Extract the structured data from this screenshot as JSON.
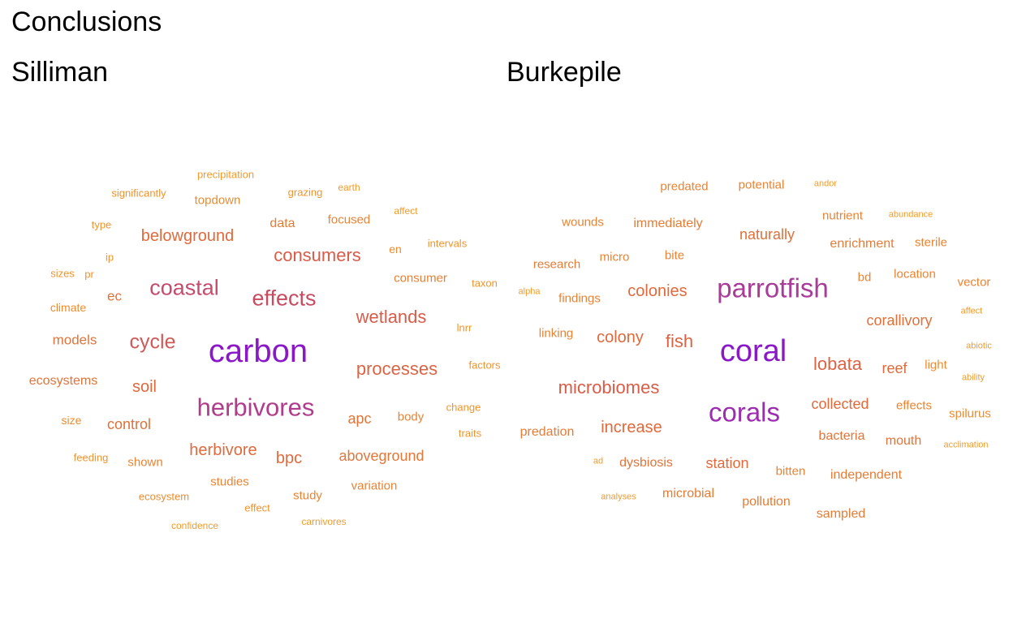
{
  "title": "Conclusions",
  "panels": [
    {
      "name": "Silliman",
      "words": [
        {
          "t": "carbon",
          "c": "#8a18c8"
        },
        {
          "t": "herbivores",
          "c": "#b03c8c"
        },
        {
          "t": "coastal",
          "c": "#c44c6c"
        },
        {
          "t": "effects",
          "c": "#c84c60"
        },
        {
          "t": "cycle",
          "c": "#d05a58"
        },
        {
          "t": "consumers",
          "c": "#d85c48"
        },
        {
          "t": "wetlands",
          "c": "#d85c48"
        },
        {
          "t": "processes",
          "c": "#dc6444"
        },
        {
          "t": "belowground",
          "c": "#e06a3c"
        },
        {
          "t": "herbivore",
          "c": "#e06a3c"
        },
        {
          "t": "soil",
          "c": "#e06a3c"
        },
        {
          "t": "bpc",
          "c": "#e06a3c"
        },
        {
          "t": "control",
          "c": "#e0703a"
        },
        {
          "t": "models",
          "c": "#e0743a"
        },
        {
          "t": "ecosystems",
          "c": "#e0743a"
        },
        {
          "t": "ec",
          "c": "#e0743a"
        },
        {
          "t": "apc",
          "c": "#e0743a"
        },
        {
          "t": "aboveground",
          "c": "#e0783a"
        },
        {
          "t": "data",
          "c": "#e47c36"
        },
        {
          "t": "consumer",
          "c": "#e88034"
        },
        {
          "t": "body",
          "c": "#e88434"
        },
        {
          "t": "studies",
          "c": "#e88434"
        },
        {
          "t": "study",
          "c": "#e88434"
        },
        {
          "t": "variation",
          "c": "#e88434"
        },
        {
          "t": "shown",
          "c": "#e88434"
        },
        {
          "t": "focused",
          "c": "#e88434"
        },
        {
          "t": "topdown",
          "c": "#ec8c30"
        },
        {
          "t": "climate",
          "c": "#ec8c30"
        },
        {
          "t": "en",
          "c": "#ec8c30"
        },
        {
          "t": "size",
          "c": "#ec8c30"
        },
        {
          "t": "ecosystem",
          "c": "#ec8c30"
        },
        {
          "t": "effect",
          "c": "#f0942c"
        },
        {
          "t": "feeding",
          "c": "#f0942c"
        },
        {
          "t": "grazing",
          "c": "#f0942c"
        },
        {
          "t": "significantly",
          "c": "#f0942c"
        },
        {
          "t": "lnrr",
          "c": "#f0942c"
        },
        {
          "t": "factors",
          "c": "#f0942c"
        },
        {
          "t": "change",
          "c": "#f0942c"
        },
        {
          "t": "traits",
          "c": "#f0942c"
        },
        {
          "t": "sizes",
          "c": "#f0942c"
        },
        {
          "t": "pr",
          "c": "#f0942c"
        },
        {
          "t": "type",
          "c": "#f0942c"
        },
        {
          "t": "ip",
          "c": "#f0942c"
        },
        {
          "t": "taxon",
          "c": "#f0942c"
        },
        {
          "t": "intervals",
          "c": "#f0942c"
        },
        {
          "t": "affect",
          "c": "#f09c2c"
        },
        {
          "t": "earth",
          "c": "#f09c2c"
        },
        {
          "t": "precipitation",
          "c": "#f09c2c"
        },
        {
          "t": "confidence",
          "c": "#f09c2c"
        },
        {
          "t": "carnivores",
          "c": "#f09c2c"
        }
      ]
    },
    {
      "name": "Burkepile",
      "words": [
        {
          "t": "coral",
          "c": "#8a18c8"
        },
        {
          "t": "corals",
          "c": "#9c2cb0"
        },
        {
          "t": "parrotfish",
          "c": "#a83c98"
        },
        {
          "t": "microbiomes",
          "c": "#d85c48"
        },
        {
          "t": "lobata",
          "c": "#dc6444"
        },
        {
          "t": "fish",
          "c": "#dc6444"
        },
        {
          "t": "colony",
          "c": "#e06a3c"
        },
        {
          "t": "colonies",
          "c": "#e06a3c"
        },
        {
          "t": "increase",
          "c": "#e06a3c"
        },
        {
          "t": "collected",
          "c": "#e06a3c"
        },
        {
          "t": "reef",
          "c": "#e06a3c"
        },
        {
          "t": "station",
          "c": "#e06a3c"
        },
        {
          "t": "corallivory",
          "c": "#e0703a"
        },
        {
          "t": "naturally",
          "c": "#e0703a"
        },
        {
          "t": "dysbiosis",
          "c": "#e0743a"
        },
        {
          "t": "bacteria",
          "c": "#e0743a"
        },
        {
          "t": "mouth",
          "c": "#e0743a"
        },
        {
          "t": "predation",
          "c": "#e47c36"
        },
        {
          "t": "microbial",
          "c": "#e47c36"
        },
        {
          "t": "pollution",
          "c": "#e47c36"
        },
        {
          "t": "sampled",
          "c": "#e47c36"
        },
        {
          "t": "independent",
          "c": "#e47c36"
        },
        {
          "t": "immediately",
          "c": "#e47c36"
        },
        {
          "t": "enrichment",
          "c": "#e47c36"
        },
        {
          "t": "research",
          "c": "#e47c36"
        },
        {
          "t": "findings",
          "c": "#e88434"
        },
        {
          "t": "linking",
          "c": "#e88434"
        },
        {
          "t": "wounds",
          "c": "#e88434"
        },
        {
          "t": "predated",
          "c": "#e88434"
        },
        {
          "t": "potential",
          "c": "#e88434"
        },
        {
          "t": "nutrient",
          "c": "#e88434"
        },
        {
          "t": "micro",
          "c": "#e88434"
        },
        {
          "t": "bite",
          "c": "#e88434"
        },
        {
          "t": "bitten",
          "c": "#e88434"
        },
        {
          "t": "effects",
          "c": "#e88434"
        },
        {
          "t": "location",
          "c": "#e88434"
        },
        {
          "t": "sterile",
          "c": "#e88434"
        },
        {
          "t": "vector",
          "c": "#e88434"
        },
        {
          "t": "bd",
          "c": "#e88434"
        },
        {
          "t": "light",
          "c": "#ec8c30"
        },
        {
          "t": "spilurus",
          "c": "#ec8c30"
        },
        {
          "t": "andor",
          "c": "#f09c2c"
        },
        {
          "t": "abundance",
          "c": "#f09c2c"
        },
        {
          "t": "alpha",
          "c": "#f09c2c"
        },
        {
          "t": "affect",
          "c": "#f09c2c"
        },
        {
          "t": "abiotic",
          "c": "#f09c2c"
        },
        {
          "t": "ability",
          "c": "#f09c2c"
        },
        {
          "t": "acclimation",
          "c": "#f09c2c"
        },
        {
          "t": "ad",
          "c": "#f09c2c"
        },
        {
          "t": "analyses",
          "c": "#f09c2c"
        }
      ]
    }
  ]
}
